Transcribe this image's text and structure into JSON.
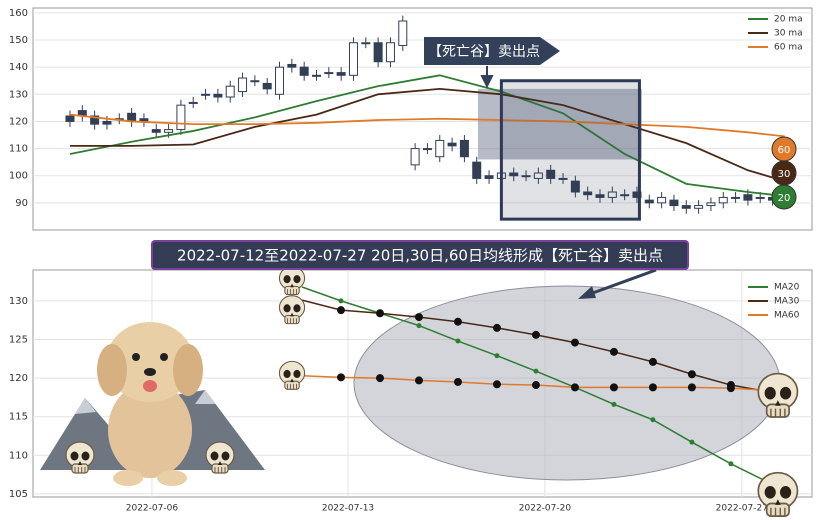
{
  "chart_data": [
    {
      "type": "candlestick",
      "open": [
        122,
        124,
        122,
        120,
        121,
        123,
        121,
        117,
        116,
        117,
        127,
        130,
        130,
        129,
        131,
        135,
        134,
        130,
        141,
        140,
        137,
        138,
        138,
        137,
        149,
        149,
        142,
        148,
        104,
        110,
        107,
        112,
        113,
        105,
        100,
        99,
        101,
        100,
        99,
        102,
        99,
        98,
        94,
        93,
        92,
        93,
        94,
        91,
        90,
        91,
        89,
        88,
        89,
        90,
        92,
        93,
        92,
        92,
        91
      ],
      "close": [
        120,
        122,
        119,
        119,
        121,
        120,
        120,
        116,
        117,
        126,
        127,
        130,
        129,
        133,
        136,
        135,
        132,
        140,
        140,
        137,
        137,
        138,
        137,
        149,
        149,
        142,
        149,
        157,
        110,
        110,
        113,
        111,
        107,
        99,
        99,
        101,
        100,
        100,
        101,
        99,
        99,
        94,
        93,
        92,
        94,
        93,
        92,
        90,
        92,
        89,
        88,
        89,
        90,
        92,
        92,
        91,
        92,
        91,
        92
      ],
      "high": [
        124,
        126,
        124,
        122,
        123,
        125,
        123,
        119,
        119,
        128,
        129,
        132,
        132,
        135,
        138,
        137,
        136,
        142,
        143,
        142,
        139,
        140,
        140,
        151,
        151,
        151,
        151,
        159,
        112,
        112,
        115,
        114,
        115,
        107,
        102,
        103,
        103,
        102,
        103,
        104,
        101,
        100,
        96,
        95,
        96,
        95,
        96,
        93,
        94,
        93,
        91,
        91,
        92,
        94,
        94,
        95,
        94,
        94,
        94
      ],
      "low": [
        118,
        120,
        117,
        117,
        119,
        118,
        118,
        114,
        114,
        115,
        125,
        128,
        127,
        127,
        129,
        133,
        130,
        128,
        138,
        135,
        135,
        136,
        135,
        135,
        147,
        140,
        140,
        146,
        102,
        108,
        105,
        109,
        105,
        97,
        97,
        97,
        98,
        98,
        97,
        97,
        97,
        92,
        91,
        90,
        90,
        91,
        90,
        88,
        88,
        87,
        86,
        86,
        87,
        88,
        90,
        89,
        90,
        89,
        89
      ],
      "color_up": "#ffffff",
      "color_down": "#333f55",
      "xlim": [
        -3,
        60.2
      ],
      "ylim": [
        80,
        161.8
      ],
      "yticks": [
        90,
        100,
        110,
        120,
        130,
        140,
        150,
        160
      ],
      "grid": true,
      "legend": "upper right",
      "series": [
        {
          "name": "20 ma",
          "color": "#2e7d32",
          "end_label": "20",
          "x": [
            0,
            5,
            10,
            15,
            20,
            25,
            30,
            35,
            40,
            45,
            50,
            55,
            58
          ],
          "values": [
            108,
            112.5,
            116.5,
            121.5,
            127.5,
            133,
            137,
            131,
            123,
            108,
            97,
            94,
            92.5
          ]
        },
        {
          "name": "30 ma",
          "color": "#4a2816",
          "end_label": "30",
          "x": [
            0,
            5,
            10,
            15,
            20,
            25,
            30,
            35,
            40,
            45,
            50,
            55,
            58
          ],
          "values": [
            111,
            111,
            111.5,
            118,
            122.5,
            130,
            132,
            130,
            126,
            119,
            112,
            102,
            98
          ]
        },
        {
          "name": "60 ma",
          "color": "#e07a2a",
          "end_label": "60",
          "x": [
            0,
            5,
            10,
            15,
            20,
            25,
            30,
            35,
            40,
            45,
            50,
            55,
            58
          ],
          "values": [
            122.5,
            120,
            119,
            119,
            119.5,
            120.5,
            121,
            120.5,
            120,
            119,
            118,
            116,
            114.5
          ]
        }
      ],
      "annotation": "【死亡谷】卖出点",
      "highlight": {
        "x": [
          33.1,
          46.4
        ],
        "y": [
          106,
          132
        ]
      },
      "box": {
        "x": [
          35,
          46.2
        ],
        "y": [
          84,
          135
        ]
      }
    },
    {
      "type": "line",
      "title": "2022-07-12至2022-07-27 20日,30日,60日均线形成【死亡谷】卖出点",
      "x": [
        0,
        1,
        2,
        3,
        4,
        5,
        6,
        7,
        8,
        9,
        10,
        11,
        12
      ],
      "xlim": [
        -6.9,
        13.08
      ],
      "xticks": [
        {
          "value": -3.85,
          "label": "2022-07-06"
        },
        {
          "value": 1.18,
          "label": "2022-07-13"
        },
        {
          "value": 6.23,
          "label": "2022-07-20"
        },
        {
          "value": 11.28,
          "label": "2022-07-27"
        }
      ],
      "ylim": [
        104.6,
        134
      ],
      "yticks": [
        105,
        110,
        115,
        120,
        125,
        130
      ],
      "grid": true,
      "legend": "upper right",
      "series": [
        {
          "name": "MA20",
          "color": "#2e7d32",
          "values": [
            131.8,
            130,
            128.4,
            126.8,
            124.8,
            122.9,
            120.9,
            118.8,
            116.6,
            114.6,
            111.7,
            108.9,
            106.4
          ]
        },
        {
          "name": "MA30",
          "color": "#4a2816",
          "values": [
            130.1,
            128.8,
            128.4,
            127.9,
            127.3,
            126.5,
            125.6,
            124.6,
            123.4,
            122.1,
            120.5,
            119.1,
            118.2
          ]
        },
        {
          "name": "MA60",
          "color": "#e07a2a",
          "values": [
            120.3,
            120.1,
            120,
            119.7,
            119.5,
            119.2,
            119.1,
            118.8,
            118.8,
            118.8,
            118.8,
            118.7,
            118.4
          ]
        }
      ]
    }
  ]
}
